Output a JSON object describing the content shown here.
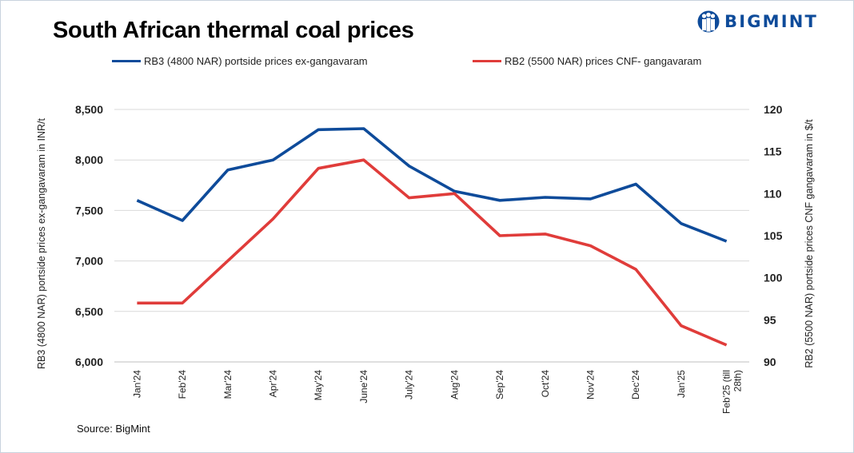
{
  "title": "South African thermal coal prices",
  "brand": {
    "name": "BIGMINT",
    "color": "#0e4b9a"
  },
  "source": "Source: BigMint",
  "chart_data": {
    "type": "line",
    "categories": [
      "Jan'24",
      "Feb'24",
      "Mar'24",
      "Apr'24",
      "May'24",
      "June'24",
      "July'24",
      "Aug'24",
      "Sep'24",
      "Oct'24",
      "Nov'24",
      "Dec'24",
      "Jan'25",
      "Feb'25 (till 28th)"
    ],
    "series": [
      {
        "name": "RB3 (4800 NAR) portside prices ex-gangavaram",
        "axis": "left",
        "color": "#0e4b9a",
        "values": [
          7600,
          7400,
          7900,
          8000,
          8300,
          8310,
          7940,
          7690,
          7600,
          7630,
          7615,
          7760,
          7370,
          7195
        ]
      },
      {
        "name": "RB2 (5500 NAR) prices CNF- gangavaram",
        "axis": "right",
        "color": "#e03c3a",
        "values": [
          97,
          97,
          102,
          107,
          113,
          114,
          109.5,
          110,
          105,
          105.2,
          103.8,
          101,
          94.3,
          92
        ]
      }
    ],
    "y_left": {
      "label": "RB3 (4800 NAR) portside prices ex-gangavaram  in INR/t",
      "range": [
        6000,
        8500
      ],
      "ticks": [
        6000,
        6500,
        7000,
        7500,
        8000,
        8500
      ],
      "tick_labels": [
        "6,000",
        "6,500",
        "7,000",
        "7,500",
        "8,000",
        "8,500"
      ]
    },
    "y_right": {
      "label": "RB2 (5500 NAR) portside prices CNF  gangavaram  in $/t",
      "range": [
        90,
        120
      ],
      "ticks": [
        90,
        95,
        100,
        105,
        110,
        115,
        120
      ],
      "tick_labels": [
        "90",
        "95",
        "100",
        "105",
        "110",
        "115",
        "120"
      ]
    },
    "grid": true,
    "legend": "top"
  }
}
